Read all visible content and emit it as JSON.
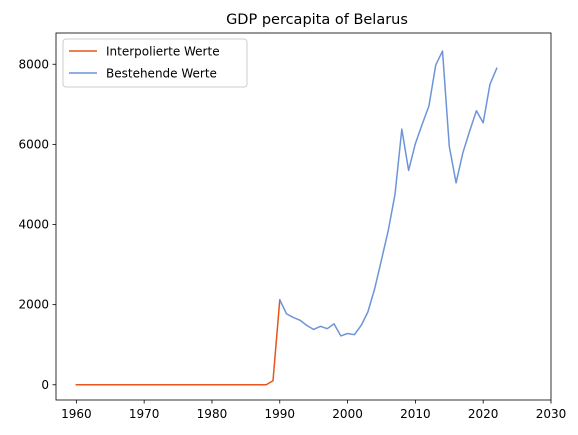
{
  "chart_data": {
    "type": "line",
    "title": "GDP percapita of Belarus",
    "xlabel": "",
    "ylabel": "",
    "xlim": [
      1957,
      2030
    ],
    "ylim": [
      -380,
      8780
    ],
    "xticks": [
      1960,
      1970,
      1980,
      1990,
      2000,
      2010,
      2020,
      2030
    ],
    "yticks": [
      0,
      2000,
      4000,
      6000,
      8000
    ],
    "grid": false,
    "legend": "top-left",
    "series": [
      {
        "name": "Interpolierte Werte",
        "color": "#e8541c",
        "x": [
          1960,
          1961,
          1962,
          1963,
          1964,
          1965,
          1966,
          1967,
          1968,
          1969,
          1970,
          1971,
          1972,
          1973,
          1974,
          1975,
          1976,
          1977,
          1978,
          1979,
          1980,
          1981,
          1982,
          1983,
          1984,
          1985,
          1986,
          1987,
          1988,
          1989,
          1990
        ],
        "y": [
          0,
          0,
          0,
          0,
          0,
          0,
          0,
          0,
          0,
          0,
          0,
          0,
          0,
          0,
          0,
          0,
          0,
          0,
          0,
          0,
          0,
          0,
          0,
          0,
          0,
          0,
          0,
          0,
          0,
          100,
          2120
        ]
      },
      {
        "name": "Bestehende Werte",
        "color": "#6d94d8",
        "x": [
          1990,
          1991,
          1992,
          1993,
          1994,
          1995,
          1996,
          1997,
          1998,
          1999,
          2000,
          2001,
          2002,
          2003,
          2004,
          2005,
          2006,
          2007,
          2008,
          2009,
          2010,
          2011,
          2012,
          2013,
          2014,
          2015,
          2016,
          2017,
          2018,
          2019,
          2020,
          2021,
          2022
        ],
        "y": [
          2120,
          1770,
          1680,
          1610,
          1480,
          1380,
          1460,
          1400,
          1520,
          1220,
          1280,
          1250,
          1480,
          1820,
          2400,
          3120,
          3850,
          4760,
          6380,
          5350,
          6020,
          6500,
          6960,
          7980,
          8330,
          5950,
          5040,
          5790,
          6330,
          6840,
          6540,
          7500,
          7900
        ]
      }
    ]
  }
}
